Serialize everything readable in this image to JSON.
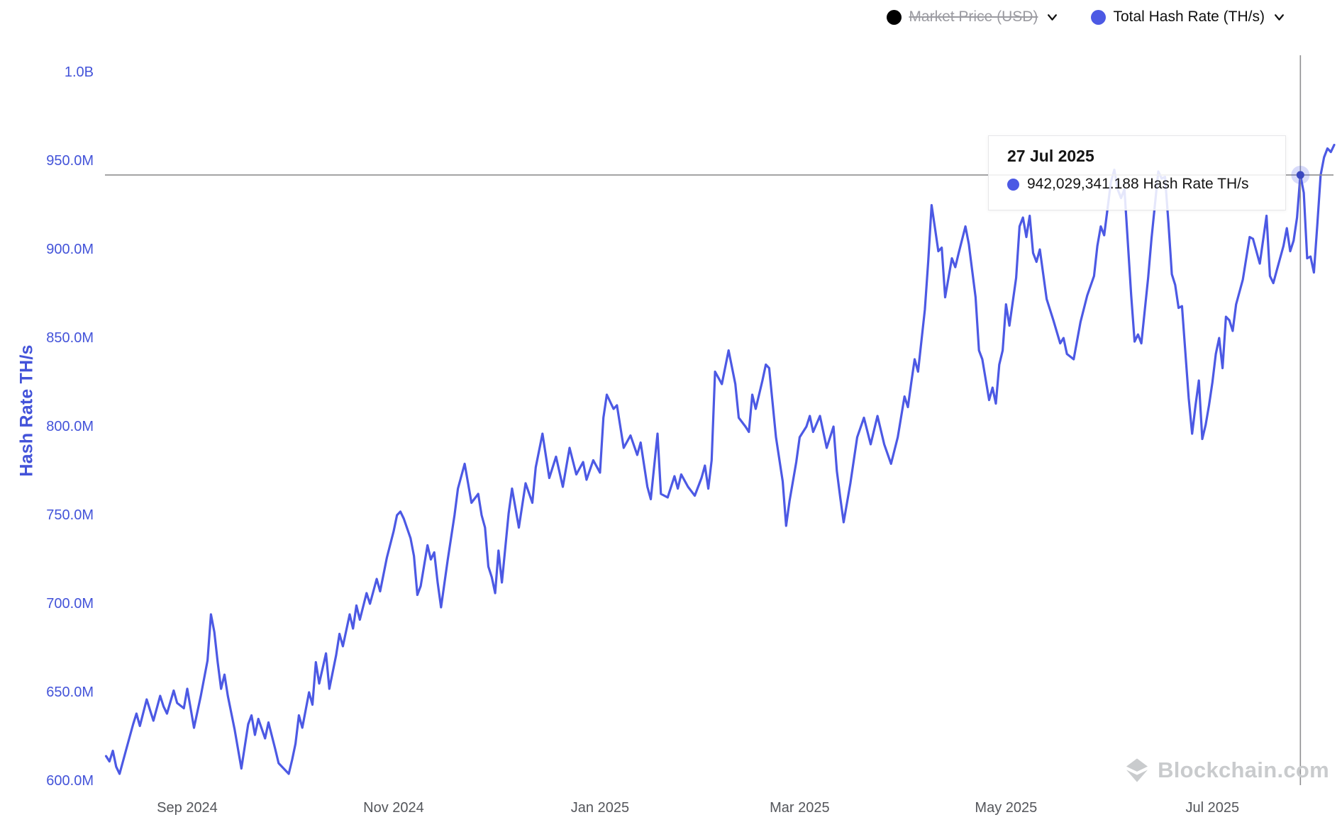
{
  "legend": {
    "market_price": {
      "label": "Market Price (USD)",
      "dot_color": "#000000",
      "disabled": true
    },
    "hash_rate": {
      "label": "Total Hash Rate (TH/s)",
      "dot_color": "#4c59e4",
      "disabled": false
    }
  },
  "tooltip": {
    "date": "27 Jul 2025",
    "value_text": "942,029,341.188 Hash Rate TH/s",
    "point": {
      "date": "2025-07-27",
      "value_m": 942.029341188
    }
  },
  "watermark": "Blockchain.com",
  "colors": {
    "line": "#4c59e4",
    "axis_blue": "#4353d9",
    "x_label_gray": "#54565b",
    "crosshair": "#8f8f91",
    "dot_inner": "#3a47c0",
    "dot_halo": "rgba(77,90,230,0.22)",
    "watermark_gray": "#c9cbcd"
  },
  "chart_data": {
    "type": "line",
    "title": "Total Hash Rate (TH/s)",
    "ylabel": "Hash Rate TH/s",
    "xlabel": "",
    "grid": false,
    "legend_position": "top-right",
    "values_unit": "million TH/s",
    "ylim_m": [
      600,
      1000
    ],
    "y_axis_ticks": [
      {
        "label": "1.0B",
        "value_m": 1000
      },
      {
        "label": "950.0M",
        "value_m": 950
      },
      {
        "label": "900.0M",
        "value_m": 900
      },
      {
        "label": "850.0M",
        "value_m": 850
      },
      {
        "label": "800.0M",
        "value_m": 800
      },
      {
        "label": "750.0M",
        "value_m": 750
      },
      {
        "label": "700.0M",
        "value_m": 700
      },
      {
        "label": "650.0M",
        "value_m": 650
      },
      {
        "label": "600.0M",
        "value_m": 600
      }
    ],
    "x_axis_ticks": [
      {
        "label": "Sep 2024",
        "date": "2024-09-01"
      },
      {
        "label": "Nov 2024",
        "date": "2024-11-01"
      },
      {
        "label": "Jan 2025",
        "date": "2025-01-01"
      },
      {
        "label": "Mar 2025",
        "date": "2025-03-01"
      },
      {
        "label": "May 2025",
        "date": "2025-05-01"
      },
      {
        "label": "Jul 2025",
        "date": "2025-07-01"
      }
    ],
    "highlighted_point": {
      "date": "2025-07-27",
      "value_m": 942.029341188
    },
    "points": [
      [
        "2024-08-08",
        614
      ],
      [
        "2024-08-09",
        611
      ],
      [
        "2024-08-10",
        617
      ],
      [
        "2024-08-11",
        608
      ],
      [
        "2024-08-12",
        604
      ],
      [
        "2024-08-14",
        618
      ],
      [
        "2024-08-16",
        632
      ],
      [
        "2024-08-17",
        638
      ],
      [
        "2024-08-18",
        631
      ],
      [
        "2024-08-20",
        646
      ],
      [
        "2024-08-21",
        640
      ],
      [
        "2024-08-22",
        634
      ],
      [
        "2024-08-24",
        648
      ],
      [
        "2024-08-25",
        642
      ],
      [
        "2024-08-26",
        638
      ],
      [
        "2024-08-28",
        651
      ],
      [
        "2024-08-29",
        644
      ],
      [
        "2024-08-31",
        641
      ],
      [
        "2024-09-01",
        652
      ],
      [
        "2024-09-03",
        630
      ],
      [
        "2024-09-05",
        648
      ],
      [
        "2024-09-07",
        668
      ],
      [
        "2024-09-08",
        694
      ],
      [
        "2024-09-09",
        684
      ],
      [
        "2024-09-10",
        667
      ],
      [
        "2024-09-11",
        652
      ],
      [
        "2024-09-12",
        660
      ],
      [
        "2024-09-13",
        648
      ],
      [
        "2024-09-15",
        629
      ],
      [
        "2024-09-17",
        607
      ],
      [
        "2024-09-19",
        632
      ],
      [
        "2024-09-20",
        637
      ],
      [
        "2024-09-21",
        626
      ],
      [
        "2024-09-22",
        635
      ],
      [
        "2024-09-24",
        624
      ],
      [
        "2024-09-25",
        633
      ],
      [
        "2024-09-27",
        618
      ],
      [
        "2024-09-28",
        610
      ],
      [
        "2024-09-30",
        606
      ],
      [
        "2024-10-01",
        604
      ],
      [
        "2024-10-02",
        612
      ],
      [
        "2024-10-03",
        621
      ],
      [
        "2024-10-04",
        637
      ],
      [
        "2024-10-05",
        630
      ],
      [
        "2024-10-07",
        650
      ],
      [
        "2024-10-08",
        643
      ],
      [
        "2024-10-09",
        667
      ],
      [
        "2024-10-10",
        655
      ],
      [
        "2024-10-12",
        672
      ],
      [
        "2024-10-13",
        652
      ],
      [
        "2024-10-15",
        671
      ],
      [
        "2024-10-16",
        683
      ],
      [
        "2024-10-17",
        676
      ],
      [
        "2024-10-19",
        694
      ],
      [
        "2024-10-20",
        686
      ],
      [
        "2024-10-21",
        699
      ],
      [
        "2024-10-22",
        691
      ],
      [
        "2024-10-24",
        706
      ],
      [
        "2024-10-25",
        700
      ],
      [
        "2024-10-27",
        714
      ],
      [
        "2024-10-28",
        707
      ],
      [
        "2024-10-30",
        726
      ],
      [
        "2024-11-01",
        741
      ],
      [
        "2024-11-02",
        750
      ],
      [
        "2024-11-03",
        752
      ],
      [
        "2024-11-04",
        748
      ],
      [
        "2024-11-06",
        737
      ],
      [
        "2024-11-07",
        727
      ],
      [
        "2024-11-08",
        705
      ],
      [
        "2024-11-09",
        710
      ],
      [
        "2024-11-11",
        733
      ],
      [
        "2024-11-12",
        725
      ],
      [
        "2024-11-13",
        729
      ],
      [
        "2024-11-14",
        712
      ],
      [
        "2024-11-15",
        698
      ],
      [
        "2024-11-17",
        725
      ],
      [
        "2024-11-19",
        750
      ],
      [
        "2024-11-20",
        765
      ],
      [
        "2024-11-22",
        779
      ],
      [
        "2024-11-24",
        757
      ],
      [
        "2024-11-26",
        762
      ],
      [
        "2024-11-27",
        750
      ],
      [
        "2024-11-28",
        743
      ],
      [
        "2024-11-29",
        721
      ],
      [
        "2024-11-30",
        715
      ],
      [
        "2024-12-01",
        706
      ],
      [
        "2024-12-02",
        730
      ],
      [
        "2024-12-03",
        712
      ],
      [
        "2024-12-05",
        751
      ],
      [
        "2024-12-06",
        765
      ],
      [
        "2024-12-08",
        743
      ],
      [
        "2024-12-10",
        768
      ],
      [
        "2024-12-12",
        757
      ],
      [
        "2024-12-13",
        777
      ],
      [
        "2024-12-15",
        796
      ],
      [
        "2024-12-17",
        771
      ],
      [
        "2024-12-19",
        783
      ],
      [
        "2024-12-21",
        766
      ],
      [
        "2024-12-23",
        788
      ],
      [
        "2024-12-25",
        773
      ],
      [
        "2024-12-27",
        780
      ],
      [
        "2024-12-28",
        770
      ],
      [
        "2024-12-30",
        781
      ],
      [
        "2025-01-01",
        774
      ],
      [
        "2025-01-02",
        805
      ],
      [
        "2025-01-03",
        818
      ],
      [
        "2025-01-05",
        810
      ],
      [
        "2025-01-06",
        812
      ],
      [
        "2025-01-08",
        788
      ],
      [
        "2025-01-10",
        795
      ],
      [
        "2025-01-12",
        784
      ],
      [
        "2025-01-13",
        791
      ],
      [
        "2025-01-15",
        766
      ],
      [
        "2025-01-16",
        759
      ],
      [
        "2025-01-18",
        796
      ],
      [
        "2025-01-19",
        762
      ],
      [
        "2025-01-21",
        760
      ],
      [
        "2025-01-23",
        772
      ],
      [
        "2025-01-24",
        765
      ],
      [
        "2025-01-25",
        773
      ],
      [
        "2025-01-27",
        766
      ],
      [
        "2025-01-29",
        761
      ],
      [
        "2025-01-31",
        771
      ],
      [
        "2025-02-01",
        778
      ],
      [
        "2025-02-02",
        765
      ],
      [
        "2025-02-03",
        781
      ],
      [
        "2025-02-04",
        831
      ],
      [
        "2025-02-06",
        824
      ],
      [
        "2025-02-08",
        843
      ],
      [
        "2025-02-10",
        824
      ],
      [
        "2025-02-11",
        805
      ],
      [
        "2025-02-13",
        800
      ],
      [
        "2025-02-14",
        797
      ],
      [
        "2025-02-15",
        818
      ],
      [
        "2025-02-16",
        810
      ],
      [
        "2025-02-18",
        826
      ],
      [
        "2025-02-19",
        835
      ],
      [
        "2025-02-20",
        833
      ],
      [
        "2025-02-22",
        794
      ],
      [
        "2025-02-24",
        769
      ],
      [
        "2025-02-25",
        744
      ],
      [
        "2025-02-26",
        758
      ],
      [
        "2025-02-28",
        780
      ],
      [
        "2025-03-01",
        794
      ],
      [
        "2025-03-03",
        800
      ],
      [
        "2025-03-04",
        806
      ],
      [
        "2025-03-05",
        797
      ],
      [
        "2025-03-07",
        806
      ],
      [
        "2025-03-09",
        788
      ],
      [
        "2025-03-11",
        800
      ],
      [
        "2025-03-12",
        775
      ],
      [
        "2025-03-13",
        760
      ],
      [
        "2025-03-14",
        746
      ],
      [
        "2025-03-16",
        768
      ],
      [
        "2025-03-18",
        794
      ],
      [
        "2025-03-20",
        805
      ],
      [
        "2025-03-22",
        790
      ],
      [
        "2025-03-24",
        806
      ],
      [
        "2025-03-26",
        790
      ],
      [
        "2025-03-28",
        779
      ],
      [
        "2025-03-30",
        794
      ],
      [
        "2025-04-01",
        817
      ],
      [
        "2025-04-02",
        811
      ],
      [
        "2025-04-03",
        825
      ],
      [
        "2025-04-04",
        838
      ],
      [
        "2025-04-05",
        831
      ],
      [
        "2025-04-07",
        866
      ],
      [
        "2025-04-08",
        893
      ],
      [
        "2025-04-09",
        925
      ],
      [
        "2025-04-10",
        912
      ],
      [
        "2025-04-11",
        899
      ],
      [
        "2025-04-12",
        901
      ],
      [
        "2025-04-13",
        873
      ],
      [
        "2025-04-15",
        895
      ],
      [
        "2025-04-16",
        890
      ],
      [
        "2025-04-17",
        898
      ],
      [
        "2025-04-19",
        913
      ],
      [
        "2025-04-20",
        903
      ],
      [
        "2025-04-22",
        873
      ],
      [
        "2025-04-23",
        843
      ],
      [
        "2025-04-24",
        838
      ],
      [
        "2025-04-26",
        815
      ],
      [
        "2025-04-27",
        822
      ],
      [
        "2025-04-28",
        813
      ],
      [
        "2025-04-29",
        835
      ],
      [
        "2025-04-30",
        843
      ],
      [
        "2025-05-01",
        869
      ],
      [
        "2025-05-02",
        857
      ],
      [
        "2025-05-04",
        884
      ],
      [
        "2025-05-05",
        913
      ],
      [
        "2025-05-06",
        918
      ],
      [
        "2025-05-07",
        907
      ],
      [
        "2025-05-08",
        919
      ],
      [
        "2025-05-09",
        898
      ],
      [
        "2025-05-10",
        893
      ],
      [
        "2025-05-11",
        900
      ],
      [
        "2025-05-13",
        872
      ],
      [
        "2025-05-15",
        860
      ],
      [
        "2025-05-17",
        847
      ],
      [
        "2025-05-18",
        850
      ],
      [
        "2025-05-19",
        841
      ],
      [
        "2025-05-21",
        838
      ],
      [
        "2025-05-23",
        859
      ],
      [
        "2025-05-25",
        874
      ],
      [
        "2025-05-27",
        885
      ],
      [
        "2025-05-28",
        902
      ],
      [
        "2025-05-29",
        913
      ],
      [
        "2025-05-30",
        908
      ],
      [
        "2025-06-01",
        938
      ],
      [
        "2025-06-02",
        945
      ],
      [
        "2025-06-03",
        934
      ],
      [
        "2025-06-04",
        929
      ],
      [
        "2025-06-05",
        934
      ],
      [
        "2025-06-07",
        874
      ],
      [
        "2025-06-08",
        848
      ],
      [
        "2025-06-09",
        852
      ],
      [
        "2025-06-10",
        847
      ],
      [
        "2025-06-12",
        884
      ],
      [
        "2025-06-13",
        906
      ],
      [
        "2025-06-15",
        944
      ],
      [
        "2025-06-16",
        940
      ],
      [
        "2025-06-17",
        941
      ],
      [
        "2025-06-18",
        915
      ],
      [
        "2025-06-19",
        886
      ],
      [
        "2025-06-20",
        880
      ],
      [
        "2025-06-21",
        867
      ],
      [
        "2025-06-22",
        868
      ],
      [
        "2025-06-24",
        816
      ],
      [
        "2025-06-25",
        796
      ],
      [
        "2025-06-26",
        812
      ],
      [
        "2025-06-27",
        826
      ],
      [
        "2025-06-28",
        793
      ],
      [
        "2025-06-29",
        801
      ],
      [
        "2025-06-30",
        812
      ],
      [
        "2025-07-01",
        825
      ],
      [
        "2025-07-02",
        841
      ],
      [
        "2025-07-03",
        850
      ],
      [
        "2025-07-04",
        833
      ],
      [
        "2025-07-05",
        862
      ],
      [
        "2025-07-06",
        860
      ],
      [
        "2025-07-07",
        854
      ],
      [
        "2025-07-08",
        869
      ],
      [
        "2025-07-10",
        883
      ],
      [
        "2025-07-12",
        907
      ],
      [
        "2025-07-13",
        906
      ],
      [
        "2025-07-15",
        892
      ],
      [
        "2025-07-17",
        919
      ],
      [
        "2025-07-18",
        885
      ],
      [
        "2025-07-19",
        881
      ],
      [
        "2025-07-20",
        888
      ],
      [
        "2025-07-22",
        902
      ],
      [
        "2025-07-23",
        912
      ],
      [
        "2025-07-24",
        899
      ],
      [
        "2025-07-25",
        905
      ],
      [
        "2025-07-26",
        918
      ],
      [
        "2025-07-27",
        942.029341188
      ],
      [
        "2025-07-28",
        932
      ],
      [
        "2025-07-29",
        895
      ],
      [
        "2025-07-30",
        896
      ],
      [
        "2025-07-31",
        887
      ],
      [
        "2025-08-01",
        914
      ],
      [
        "2025-08-02",
        942
      ],
      [
        "2025-08-03",
        952
      ],
      [
        "2025-08-04",
        957
      ],
      [
        "2025-08-05",
        955
      ],
      [
        "2025-08-06",
        959
      ]
    ]
  }
}
